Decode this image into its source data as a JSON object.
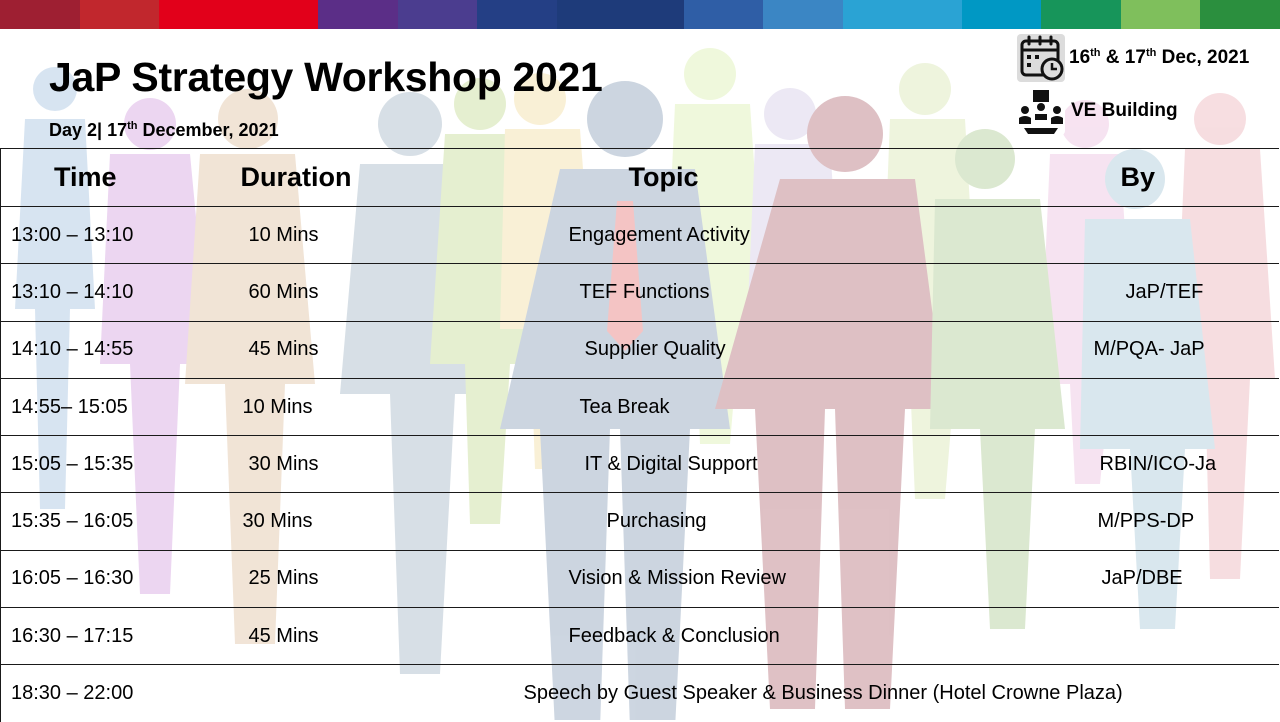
{
  "header": {
    "title": "JaP Strategy Workshop 2021",
    "subtitle_prefix": "Day 2| 17",
    "subtitle_sup": "th",
    "subtitle_suffix": " December, 2021"
  },
  "info": {
    "date_part1": "16",
    "date_sup1": "th",
    "date_part2": " & 17",
    "date_sup2": "th",
    "date_part3": " Dec, 2021",
    "venue": "VE Building",
    "date_icon": "calendar-clock-icon",
    "venue_icon": "presenter-audience-icon"
  },
  "table": {
    "headers": {
      "time": "Time",
      "duration": "Duration",
      "topic": "Topic",
      "by": "By"
    },
    "rows": [
      {
        "time": "13:00 – 13:10",
        "duration": "10 Mins",
        "topic": "Engagement Activity",
        "by": ""
      },
      {
        "time": "13:10 – 14:10",
        "duration": "60 Mins",
        "topic": "TEF Functions",
        "by": "JaP/TEF"
      },
      {
        "time": "14:10 – 14:55",
        "duration": "45 Mins",
        "topic": "Supplier Quality",
        "by": "M/PQA- JaP"
      },
      {
        "time": "14:55– 15:05",
        "duration": "10 Mins",
        "topic": "Tea Break",
        "by": ""
      },
      {
        "time": "15:05 – 15:35",
        "duration": "30 Mins",
        "topic": "IT & Digital Support",
        "by": "RBIN/ICO-Ja"
      },
      {
        "time": "15:35 – 16:05",
        "duration": "30 Mins",
        "topic": "Purchasing",
        "by": "M/PPS-DP"
      },
      {
        "time": "16:05 – 16:30",
        "duration": "25 Mins",
        "topic": "Vision & Mission Review",
        "by": "JaP/DBE"
      },
      {
        "time": "16:30 – 17:15",
        "duration": "45 Mins",
        "topic": "Feedback & Conclusion",
        "by": ""
      }
    ],
    "final_row": {
      "time": "18:30 – 22:00",
      "text": "Speech by Guest Speaker & Business Dinner (Hotel Crowne Plaza)"
    }
  },
  "colors": {
    "stripe": [
      "#9e1f32",
      "#c1272d",
      "#e2001a",
      "#5b2e87",
      "#4b3d8f",
      "#243f85",
      "#1e3b7a",
      "#2f5ea6",
      "#3b86c4",
      "#2aa3d4",
      "#0098c4",
      "#17955a",
      "#7fbf5c",
      "#2b8f3e"
    ]
  }
}
